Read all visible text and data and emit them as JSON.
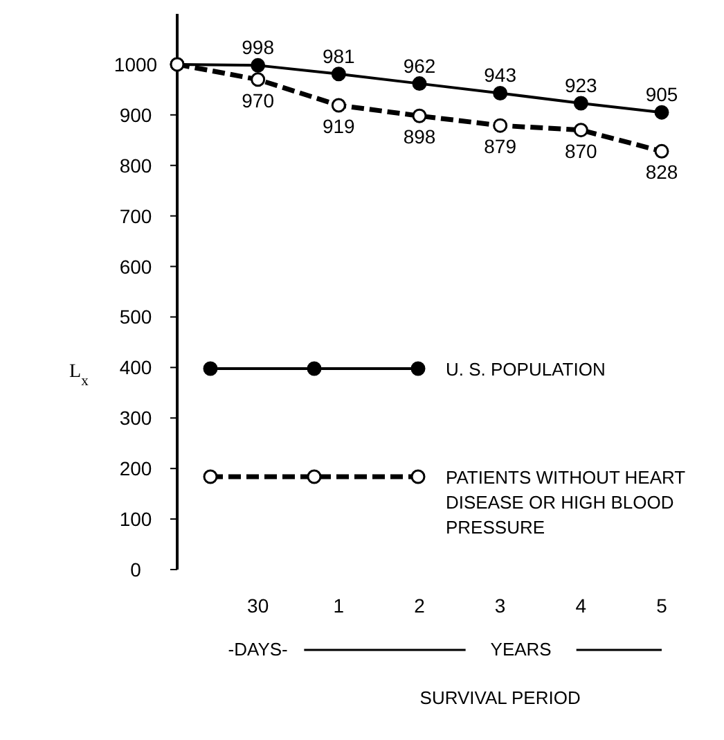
{
  "chart_data": {
    "type": "line",
    "ylabel": "L$_{x}$",
    "xlabel": "SURVIVAL PERIOD",
    "categories": [
      null,
      "30",
      "1",
      "2",
      "3",
      "4",
      "5"
    ],
    "ylim": [
      0,
      1100
    ],
    "yticks": [
      0,
      100,
      200,
      300,
      400,
      500,
      600,
      700,
      800,
      900,
      1000
    ],
    "series": [
      {
        "name": "U. S. POPULATION",
        "color": "#000000",
        "line_style": "solid",
        "values": [
          1000,
          998,
          981,
          962,
          943,
          923,
          905
        ],
        "value_labels": [
          null,
          "998",
          "981",
          "962",
          "943",
          "923",
          "905"
        ]
      },
      {
        "name": "PATIENTS WITHOUT HEART DISEASE OR HIGH BLOOD PRESSURE",
        "color": "#000000",
        "line_style": "dashed",
        "values": [
          1000,
          970,
          919,
          898,
          879,
          870,
          828
        ],
        "value_labels": [
          null,
          "970",
          "919",
          "898",
          "879",
          "870",
          "828"
        ]
      }
    ],
    "marker": "circle",
    "legend": "bottom",
    "grid": false,
    "annotations": [
      "-DAYS-",
      "YEARS"
    ]
  }
}
